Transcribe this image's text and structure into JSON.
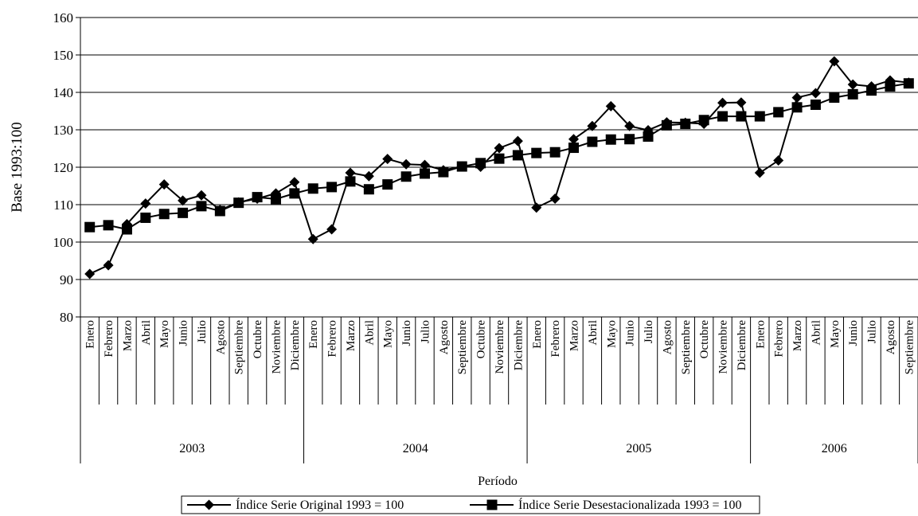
{
  "chart_data": {
    "type": "line",
    "ylabel": "Base 1993:100",
    "xlabel": "Período",
    "ylim": [
      80,
      160
    ],
    "yticks": [
      80,
      90,
      100,
      110,
      120,
      130,
      140,
      150,
      160
    ],
    "grid": true,
    "legend_position": "bottom",
    "months": [
      "Enero",
      "Febrero",
      "Marzo",
      "Abril",
      "Mayo",
      "Junio",
      "Julio",
      "Agosto",
      "Septiembre",
      "Octubre",
      "Noviembre",
      "Diciembre"
    ],
    "years": [
      {
        "label": "2003",
        "months": 12
      },
      {
        "label": "2004",
        "months": 12
      },
      {
        "label": "2005",
        "months": 12
      },
      {
        "label": "2006",
        "months": 9
      }
    ],
    "series": [
      {
        "name": "Índice Serie Original 1993 = 100",
        "marker": "diamond",
        "values": [
          91.5,
          93.8,
          104.8,
          110.3,
          115.4,
          111.1,
          112.5,
          108.6,
          110.6,
          111.6,
          113.0,
          116.0,
          100.8,
          103.4,
          118.5,
          117.6,
          122.2,
          120.8,
          120.6,
          119.2,
          120.2,
          120.1,
          125.1,
          127.0,
          109.2,
          111.6,
          127.5,
          131.0,
          136.3,
          131.0,
          129.9,
          132.0,
          131.9,
          131.6,
          137.2,
          137.3,
          118.5,
          121.8,
          138.6,
          139.8,
          148.3,
          142.1,
          141.6,
          143.2,
          142.6
        ]
      },
      {
        "name": "Índice Serie Desestacionalizada 1993 = 100",
        "marker": "square",
        "values": [
          104.0,
          104.5,
          103.4,
          106.5,
          107.5,
          107.8,
          109.6,
          108.3,
          110.5,
          112.0,
          111.5,
          113.0,
          114.3,
          114.7,
          116.2,
          114.1,
          115.4,
          117.5,
          118.3,
          118.7,
          120.2,
          121.1,
          122.3,
          123.2,
          123.8,
          124.0,
          125.2,
          126.8,
          127.4,
          127.5,
          128.2,
          131.2,
          131.6,
          132.6,
          133.6,
          133.6,
          133.6,
          134.7,
          136.0,
          136.7,
          138.6,
          139.5,
          140.5,
          141.6,
          142.4
        ]
      }
    ]
  }
}
